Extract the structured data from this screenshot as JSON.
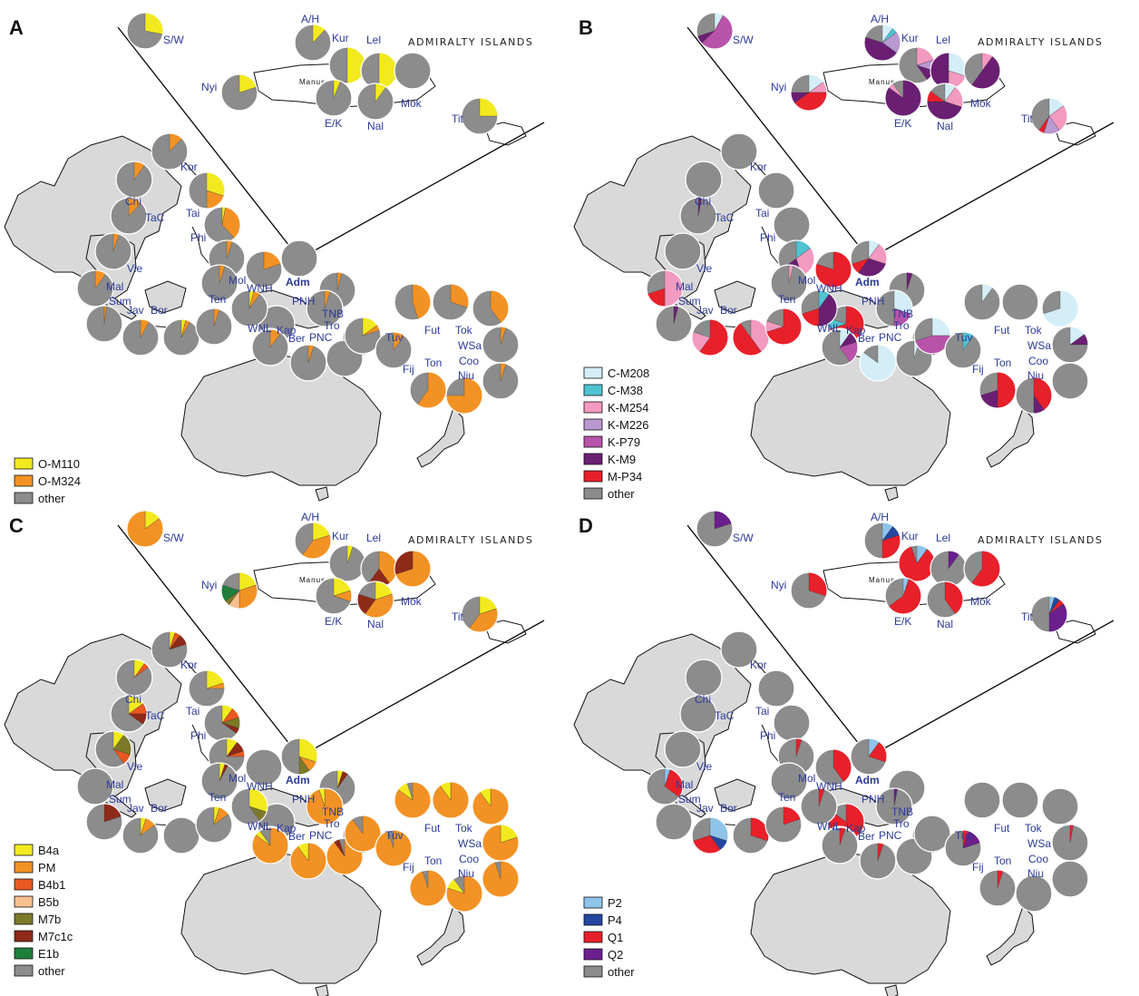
{
  "colors": {
    "O-M110": "#f2ea1e",
    "O-M324": "#f39224",
    "other": "#8c8c8c",
    "C-M208": "#d3eef7",
    "C-M38": "#4fc3d1",
    "K-M254": "#f39ac1",
    "K-M226": "#b999cf",
    "K-P79": "#b853a9",
    "K-M9": "#6a1f73",
    "M-P34": "#e8202a",
    "B4a": "#f2ea1e",
    "PM": "#f39224",
    "B4b1": "#e9581f",
    "B5b": "#f7c08f",
    "M7b": "#7c7a28",
    "M7c1c": "#8e2a18",
    "E1b": "#1e7f3b",
    "P2": "#8fc4ea",
    "P4": "#2447a0",
    "Q1": "#e8202a",
    "Q2": "#6a1f8c"
  },
  "inset_title": "ADMIRALTY ISLANDS",
  "manus_label": "Manus",
  "place_labels": [
    "S/W",
    "A/H",
    "Kur",
    "Lel",
    "Nyi",
    "Mok",
    "E/K",
    "Nal",
    "Tit",
    "Kor",
    "Chi",
    "TaC",
    "Tai",
    "Phi",
    "Vie",
    "Mal",
    "Sum",
    "Jav",
    "Bor",
    "Mol",
    "Ten",
    "WNH",
    "Adm",
    "PNH",
    "TNB",
    "Tro",
    "WNL",
    "Kap",
    "Ber",
    "PNC",
    "Tuv",
    "Fut",
    "Tok",
    "WSa",
    "Coo",
    "Fij",
    "Ton",
    "Niu"
  ],
  "panels": [
    {
      "letter": "A",
      "legend": [
        "O-M110",
        "O-M324",
        "other"
      ],
      "pies": {
        "S/W": {
          "O-M110": 0.28,
          "other": 0.72
        },
        "A/H": {
          "O-M110": 0.12,
          "other": 0.88
        },
        "Kur": {
          "O-M110": 0.5,
          "other": 0.5
        },
        "Lel": {
          "O-M110": 0.5,
          "other": 0.5
        },
        "Mok": {
          "other": 1.0
        },
        "Nyi": {
          "O-M110": 0.2,
          "other": 0.8
        },
        "E/K": {
          "O-M110": 0.06,
          "other": 0.94
        },
        "Nal": {
          "O-M110": 0.1,
          "other": 0.9
        },
        "Tit": {
          "O-M110": 0.25,
          "other": 0.75
        },
        "c1": {
          "O-M324": 0.12,
          "other": 0.88
        },
        "c2": {
          "O-M324": 0.1,
          "other": 0.9
        },
        "c3": {
          "O-M110": 0.3,
          "O-M324": 0.2,
          "other": 0.5
        },
        "c4": {
          "O-M324": 0.12,
          "other": 0.88
        },
        "c5": {
          "O-M110": 0.03,
          "O-M324": 0.35,
          "other": 0.62
        },
        "c6": {
          "O-M324": 0.05,
          "other": 0.95
        },
        "c7": {
          "O-M324": 0.05,
          "other": 0.95
        },
        "c8": {
          "O-M324": 0.2,
          "other": 0.8
        },
        "c9": {
          "other": 1.0
        },
        "c10": {
          "O-M324": 0.1,
          "other": 0.9
        },
        "c11": {
          "O-M324": 0.04,
          "other": 0.96
        },
        "c12": {
          "O-M324": 0.05,
          "other": 0.95
        },
        "c13": {
          "O-M324": 0.02,
          "other": 0.98
        },
        "c14": {
          "O-M110": 0.12,
          "other": 0.88
        },
        "c15": {
          "other": 1.0
        },
        "c16": {
          "O-M324": 0.08,
          "other": 0.92
        },
        "c17": {
          "O-M110": 0.04,
          "O-M324": 0.04,
          "other": 0.92
        },
        "c18": {
          "O-M324": 0.05,
          "other": 0.95
        },
        "c19": {
          "O-M110": 0.04,
          "O-M324": 0.06,
          "other": 0.9
        },
        "c20": {
          "O-M110": 0.06,
          "O-M324": 0.04,
          "other": 0.9
        },
        "c21": {
          "other": 1.0
        },
        "c22": {
          "O-M324": 0.1,
          "other": 0.9
        },
        "c23": {
          "O-M324": 0.05,
          "other": 0.95
        },
        "c24": {
          "O-M110": 0.15,
          "O-M324": 0.05,
          "other": 0.8
        },
        "c25": {
          "O-M324": 0.05,
          "other": 0.95
        },
        "c26": {
          "O-M324": 0.45,
          "other": 0.55
        },
        "c27": {
          "O-M324": 0.3,
          "other": 0.7
        },
        "c28": {
          "O-M324": 0.4,
          "other": 0.6
        },
        "c29": {
          "O-M324": 0.05,
          "other": 0.95
        },
        "c30": {
          "O-M324": 0.1,
          "other": 0.9
        },
        "c31": {
          "O-M324": 0.6,
          "other": 0.4
        },
        "c32": {
          "O-M324": 0.75,
          "other": 0.25
        },
        "c33": {
          "O-M324": 0.05,
          "other": 0.95
        }
      }
    },
    {
      "letter": "B",
      "legend": [
        "C-M208",
        "C-M38",
        "K-M254",
        "K-M226",
        "K-P79",
        "K-M9",
        "M-P34",
        "other"
      ],
      "pies": {
        "S/W": {
          "C-M208": 0.08,
          "K-P79": 0.55,
          "K-M9": 0.07,
          "other": 0.3
        },
        "A/H": {
          "C-M208": 0.1,
          "C-M38": 0.05,
          "K-M226": 0.2,
          "K-M9": 0.45,
          "other": 0.2
        },
        "Kur": {
          "K-M254": 0.2,
          "K-M226": 0.1,
          "K-M9": 0.1,
          "other": 0.6
        },
        "Lel": {
          "C-M208": 0.3,
          "K-M254": 0.2,
          "K-M9": 0.5
        },
        "Mok": {
          "K-M254": 0.1,
          "K-M9": 0.5,
          "other": 0.4
        },
        "Nyi": {
          "C-M208": 0.15,
          "K-M254": 0.1,
          "M-P34": 0.4,
          "K-M9": 0.1,
          "other": 0.25
        },
        "E/K": {
          "K-M9": 0.85,
          "K-M254": 0.05,
          "other": 0.1
        },
        "Nal": {
          "C-M208": 0.1,
          "K-M254": 0.2,
          "K-M9": 0.45,
          "M-P34": 0.1,
          "other": 0.15
        },
        "Tit": {
          "C-M208": 0.15,
          "K-M254": 0.25,
          "K-M226": 0.15,
          "M-P34": 0.05,
          "other": 0.4
        },
        "c1": {
          "other": 1.0
        },
        "c2": {
          "other": 1.0
        },
        "c3": {
          "other": 1.0
        },
        "c4": {
          "K-M9": 0.03,
          "other": 0.97
        },
        "c5": {
          "other": 1.0
        },
        "c6": {
          "other": 1.0
        },
        "c7": {
          "C-M38": 0.15,
          "K-M254": 0.3,
          "K-M9": 0.2,
          "other": 0.35
        },
        "c8": {
          "M-P34": 0.8,
          "other": 0.2
        },
        "c9": {
          "C-M208": 0.1,
          "K-M254": 0.2,
          "K-M9": 0.3,
          "M-P34": 0.1,
          "other": 0.3
        },
        "c10": {
          "K-M254": 0.5,
          "M-P34": 0.2,
          "other": 0.3
        },
        "c11": {
          "K-M9": 0.05,
          "other": 0.95
        },
        "c12": {
          "K-M254": 0.04,
          "other": 0.96
        },
        "c13": {
          "K-M9": 0.04,
          "other": 0.96
        },
        "c14": {
          "C-M38": 0.1,
          "M-P34": 0.2,
          "K-M9": 0.3,
          "other": 0.4
        },
        "c15": {
          "M-P34": 0.7,
          "C-M38": 0.1,
          "other": 0.2
        },
        "c16": {
          "M-P34": 0.6,
          "K-M254": 0.2,
          "other": 0.2
        },
        "c17": {
          "K-M254": 0.4,
          "M-P34": 0.5,
          "other": 0.1
        },
        "c18": {
          "M-P34": 0.7,
          "K-M254": 0.1,
          "other": 0.2
        },
        "c19": {
          "C-M38": 0.1,
          "K-M9": 0.4,
          "M-P34": 0.2,
          "other": 0.3
        },
        "c20": {
          "C-M38": 0.2,
          "K-M254": 0.1,
          "other": 0.7
        },
        "c21": {
          "C-M208": 0.05,
          "other": 0.95
        },
        "c22": {
          "C-M208": 0.1,
          "K-M9": 0.1,
          "K-P79": 0.2,
          "other": 0.6
        },
        "c23": {
          "C-M208": 0.3,
          "K-P79": 0.2,
          "other": 0.5
        },
        "c24": {
          "C-M208": 0.25,
          "K-P79": 0.45,
          "other": 0.3
        },
        "c25": {
          "C-M208": 0.85,
          "other": 0.15
        },
        "c26": {
          "C-M208": 0.1,
          "other": 0.9
        },
        "c27": {
          "other": 1.0
        },
        "c28": {
          "C-M208": 0.7,
          "other": 0.3
        },
        "c29": {
          "C-M208": 0.15,
          "K-M9": 0.1,
          "other": 0.75
        },
        "c30": {
          "C-M38": 0.1,
          "other": 0.9
        },
        "c31": {
          "M-P34": 0.5,
          "K-M9": 0.2,
          "other": 0.3
        },
        "c32": {
          "M-P34": 0.4,
          "K-M9": 0.1,
          "other": 0.5
        },
        "c33": {
          "other": 1.0
        }
      }
    },
    {
      "letter": "C",
      "legend": [
        "B4a",
        "PM",
        "B4b1",
        "B5b",
        "M7b",
        "M7c1c",
        "E1b",
        "other"
      ],
      "pies": {
        "S/W": {
          "B4a": 0.15,
          "PM": 0.85
        },
        "A/H": {
          "B4a": 0.2,
          "PM": 0.4,
          "other": 0.4
        },
        "Kur": {
          "B4a": 0.05,
          "other": 0.95
        },
        "Lel": {
          "PM": 0.4,
          "M7c1c": 0.2,
          "other": 0.4
        },
        "Mok": {
          "PM": 0.7,
          "M7c1c": 0.3
        },
        "Nyi": {
          "B4a": 0.2,
          "PM": 0.3,
          "B5b": 0.1,
          "M7b": 0.05,
          "E1b": 0.15,
          "other": 0.2
        },
        "E/K": {
          "B4a": 0.2,
          "PM": 0.1,
          "other": 0.7
        },
        "Nal": {
          "B4a": 0.2,
          "PM": 0.4,
          "M7c1c": 0.2,
          "other": 0.2
        },
        "Tit": {
          "B4a": 0.2,
          "PM": 0.4,
          "other": 0.4
        },
        "c1": {
          "B4a": 0.05,
          "B4b1": 0.05,
          "M7c1c": 0.1,
          "other": 0.8
        },
        "c2": {
          "B4a": 0.1,
          "B4b1": 0.05,
          "other": 0.85
        },
        "c3": {
          "B4a": 0.2,
          "PM": 0.05,
          "other": 0.75
        },
        "c4": {
          "B4a": 0.15,
          "B4b1": 0.1,
          "M7c1c": 0.1,
          "other": 0.65
        },
        "c5": {
          "B4a": 0.1,
          "B4b1": 0.1,
          "M7b": 0.1,
          "M7c1c": 0.05,
          "other": 0.65
        },
        "c6": {
          "B4a": 0.1,
          "M7b": 0.2,
          "B4b1": 0.1,
          "other": 0.6
        },
        "c7": {
          "B4a": 0.1,
          "M7c1c": 0.1,
          "B4b1": 0.05,
          "other": 0.75
        },
        "c8": {
          "other": 1.0
        },
        "c9": {
          "B4a": 0.3,
          "PM": 0.1,
          "M7b": 0.1,
          "other": 0.5
        },
        "c10": {
          "other": 1.0
        },
        "c11": {
          "B4a": 0.05,
          "M7c1c": 0.05,
          "other": 0.9
        },
        "c12": {
          "B4a": 0.05,
          "M7c1c": 0.03,
          "other": 0.92
        },
        "c13": {
          "M7c1c": 0.2,
          "other": 0.8
        },
        "c14": {
          "B4a": 0.25,
          "PM": 0.05,
          "other": 0.7
        },
        "c15": {
          "other": 1.0
        },
        "c16": {
          "B4a": 0.05,
          "PM": 0.1,
          "other": 0.85
        },
        "c17": {
          "other": 1.0
        },
        "c18": {
          "B4a": 0.05,
          "PM": 0.1,
          "other": 0.85
        },
        "c19": {
          "B4a": 0.3,
          "M7b": 0.1,
          "other": 0.6
        },
        "c20": {
          "B4a": 0.3,
          "PM": 0.5,
          "other": 0.2
        },
        "c21": {
          "PM": 0.9,
          "M7c1c": 0.05,
          "other": 0.05
        },
        "c22": {
          "PM": 0.85,
          "B4a": 0.05,
          "other": 0.1
        },
        "c23": {
          "PM": 0.95,
          "B4a": 0.05
        },
        "c24": {
          "PM": 0.9,
          "other": 0.1
        },
        "c25": {
          "PM": 0.9,
          "B4a": 0.1
        },
        "c26": {
          "PM": 0.85,
          "B4a": 0.1,
          "other": 0.05
        },
        "c27": {
          "PM": 0.9,
          "B4a": 0.1
        },
        "c28": {
          "PM": 0.9,
          "B4a": 0.1
        },
        "c29": {
          "B4a": 0.2,
          "PM": 0.8
        },
        "c30": {
          "PM": 0.95,
          "other": 0.05
        },
        "c31": {
          "PM": 0.95,
          "other": 0.05
        },
        "c32": {
          "PM": 0.8,
          "B4a": 0.1,
          "other": 0.1
        },
        "c33": {
          "PM": 0.95,
          "other": 0.05
        }
      }
    },
    {
      "letter": "D",
      "legend": [
        "P2",
        "P4",
        "Q1",
        "Q2",
        "other"
      ],
      "pies": {
        "S/W": {
          "Q2": 0.2,
          "other": 0.8
        },
        "A/H": {
          "P2": 0.1,
          "P4": 0.1,
          "Q1": 0.3,
          "other": 0.5
        },
        "Kur": {
          "P2": 0.1,
          "Q1": 0.85,
          "other": 0.05
        },
        "Lel": {
          "Q2": 0.1,
          "other": 0.9
        },
        "Mok": {
          "Q1": 0.6,
          "other": 0.4
        },
        "Nyi": {
          "Q1": 0.3,
          "other": 0.7
        },
        "E/K": {
          "P2": 0.05,
          "Q1": 0.6,
          "other": 0.35
        },
        "Nal": {
          "Q1": 0.4,
          "other": 0.6
        },
        "Tit": {
          "P2": 0.05,
          "P4": 0.05,
          "Q1": 0.05,
          "Q2": 0.35,
          "other": 0.5
        },
        "c1": {
          "other": 1.0
        },
        "c2": {
          "other": 1.0
        },
        "c3": {
          "other": 1.0
        },
        "c4": {
          "other": 1.0
        },
        "c5": {
          "other": 1.0
        },
        "c6": {
          "other": 1.0
        },
        "c7": {
          "Q1": 0.05,
          "other": 0.95
        },
        "c8": {
          "Q1": 0.4,
          "other": 0.6
        },
        "c9": {
          "P2": 0.1,
          "Q1": 0.2,
          "other": 0.7
        },
        "c10": {
          "P2": 0.05,
          "Q1": 0.3,
          "other": 0.65
        },
        "c11": {
          "other": 1.0
        },
        "c12": {
          "other": 1.0
        },
        "c13": {
          "other": 1.0
        },
        "c14": {
          "Q1": 0.1,
          "other": 0.9
        },
        "c15": {
          "Q1": 0.85,
          "other": 0.15
        },
        "c16": {
          "P2": 0.3,
          "P4": 0.1,
          "Q1": 0.3,
          "other": 0.3
        },
        "c17": {
          "Q1": 0.3,
          "other": 0.7
        },
        "c18": {
          "Q1": 0.2,
          "other": 0.8
        },
        "c19": {
          "Q1": 0.05,
          "other": 0.95
        },
        "c20": {
          "Q1": 0.3,
          "other": 0.7
        },
        "c21": {
          "other": 1.0
        },
        "c22": {
          "Q1": 0.05,
          "other": 0.95
        },
        "c23": {
          "Q2": 0.03,
          "other": 0.97
        },
        "c24": {
          "other": 1.0
        },
        "c25": {
          "Q1": 0.05,
          "other": 0.95
        },
        "c26": {
          "other": 1.0
        },
        "c27": {
          "other": 1.0
        },
        "c28": {
          "other": 1.0
        },
        "c29": {
          "Q1": 0.03,
          "other": 0.97
        },
        "c30": {
          "Q1": 0.05,
          "Q2": 0.15,
          "other": 0.8
        },
        "c31": {
          "Q1": 0.05,
          "other": 0.95
        },
        "c32": {
          "other": 1.0
        },
        "c33": {
          "other": 1.0
        }
      }
    }
  ]
}
